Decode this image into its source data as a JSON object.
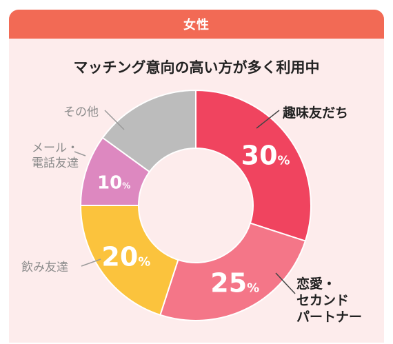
{
  "header": {
    "title": "女性"
  },
  "chart_data": {
    "type": "pie",
    "title": "マッチング意向の高い方が多く利用中",
    "slices": [
      {
        "name": "趣味友だち",
        "display_name": "趣味友だち",
        "value": 30,
        "value_label": "30",
        "unit": "%",
        "color": "#f0445f",
        "emphasis": true
      },
      {
        "name": "恋愛・セカンドパートナー",
        "display_name": "恋愛・\nセカンド\nパートナー",
        "value": 25,
        "value_label": "25",
        "unit": "%",
        "color": "#f47688",
        "emphasis": true
      },
      {
        "name": "飲み友達",
        "display_name": "飲み友達",
        "value": 20,
        "value_label": "20",
        "unit": "%",
        "color": "#fbc33d",
        "emphasis": false
      },
      {
        "name": "メール・電話友達",
        "display_name": "メール・\n電話友達",
        "value": 10,
        "value_label": "10",
        "unit": "%",
        "color": "#dd88c0",
        "emphasis": false
      },
      {
        "name": "その他",
        "display_name": "その他",
        "value": 15,
        "value_label": "",
        "unit": "",
        "color": "#bcbcbc",
        "emphasis": false
      }
    ]
  }
}
